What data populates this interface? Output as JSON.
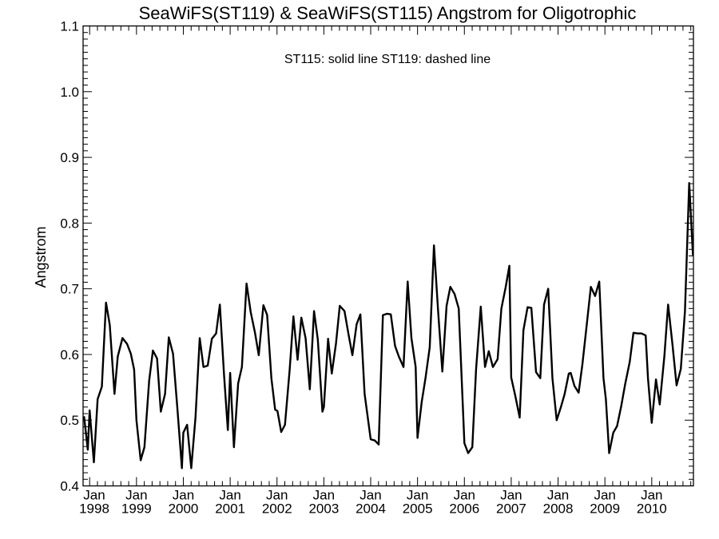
{
  "chart_data": {
    "type": "line",
    "title": "SeaWiFS(ST119) & SeaWiFS(ST115)  Angstrom for Oligotrophic",
    "annotation": "ST115: solid line   ST119: dashed line",
    "xlabel": "",
    "ylabel": "Angstrom",
    "xlim": [
      1997.86,
      2010.89
    ],
    "ylim": [
      0.4,
      1.1
    ],
    "yticks": [
      0.4,
      0.5,
      0.6,
      0.7,
      0.8,
      0.9,
      1.0,
      1.1
    ],
    "ytick_labels": [
      "0.4",
      "0.5",
      "0.6",
      "0.7",
      "0.8",
      "0.9",
      "1.0",
      "1.1"
    ],
    "xticks": [
      1998,
      1999,
      2000,
      2001,
      2002,
      2003,
      2004,
      2005,
      2006,
      2007,
      2008,
      2009,
      2010
    ],
    "xtick_month": "Jan",
    "xtick_labels": [
      "1998",
      "1999",
      "2000",
      "2001",
      "2002",
      "2003",
      "2004",
      "2005",
      "2006",
      "2007",
      "2008",
      "2009",
      "2010"
    ],
    "grid": false,
    "series": [
      {
        "name": "ST115",
        "style": "solid",
        "color": "#000000",
        "x": [
          1997.88,
          1997.96,
          1998.0,
          1998.09,
          1998.17,
          1998.26,
          1998.35,
          1998.43,
          1998.53,
          1998.6,
          1998.7,
          1998.8,
          1998.88,
          1998.95,
          1999.0,
          1999.09,
          1999.17,
          1999.27,
          1999.35,
          1999.44,
          1999.52,
          1999.61,
          1999.69,
          1999.78,
          1999.87,
          1999.97,
          2000.0,
          2000.08,
          2000.17,
          2000.26,
          2000.35,
          2000.43,
          2000.52,
          2000.61,
          2000.7,
          2000.78,
          2000.87,
          2000.95,
          2001.0,
          2001.08,
          2001.17,
          2001.25,
          2001.35,
          2001.44,
          2001.53,
          2001.61,
          2001.71,
          2001.79,
          2001.88,
          2001.96,
          2002.01,
          2002.09,
          2002.17,
          2002.27,
          2002.35,
          2002.44,
          2002.52,
          2002.61,
          2002.7,
          2002.79,
          2002.87,
          2002.97,
          2003.0,
          2003.09,
          2003.17,
          2003.26,
          2003.34,
          2003.44,
          2003.53,
          2003.61,
          2003.7,
          2003.78,
          2003.87,
          2004.0,
          2004.09,
          2004.17,
          2004.26,
          2004.35,
          2004.43,
          2004.52,
          2004.6,
          2004.7,
          2004.79,
          2004.87,
          2004.96,
          2005.0,
          2005.09,
          2005.17,
          2005.26,
          2005.35,
          2005.44,
          2005.53,
          2005.62,
          2005.7,
          2005.79,
          2005.88,
          2006.0,
          2006.08,
          2006.17,
          2006.25,
          2006.35,
          2006.44,
          2006.52,
          2006.61,
          2006.71,
          2006.79,
          2006.88,
          2006.96,
          2007.0,
          2007.09,
          2007.18,
          2007.26,
          2007.35,
          2007.43,
          2007.53,
          2007.62,
          2007.7,
          2007.79,
          2007.88,
          2007.97,
          2008.06,
          2008.14,
          2008.23,
          2008.27,
          2008.35,
          2008.44,
          2008.52,
          2008.6,
          2008.7,
          2008.79,
          2008.88,
          2008.97,
          2009.02,
          2009.09,
          2009.18,
          2009.26,
          2009.35,
          2009.43,
          2009.53,
          2009.61,
          2009.7,
          2009.78,
          2009.87,
          2009.92,
          2010.0,
          2010.09,
          2010.17,
          2010.27,
          2010.35,
          2010.44,
          2010.53,
          2010.62,
          2010.71,
          2010.8,
          2010.88
        ],
        "y": [
          0.506,
          0.455,
          0.515,
          0.436,
          0.532,
          0.551,
          0.679,
          0.645,
          0.54,
          0.597,
          0.625,
          0.616,
          0.601,
          0.577,
          0.5,
          0.439,
          0.459,
          0.56,
          0.606,
          0.594,
          0.513,
          0.54,
          0.626,
          0.601,
          0.52,
          0.427,
          0.481,
          0.493,
          0.427,
          0.504,
          0.625,
          0.581,
          0.583,
          0.624,
          0.632,
          0.676,
          0.568,
          0.485,
          0.572,
          0.459,
          0.556,
          0.581,
          0.708,
          0.664,
          0.633,
          0.599,
          0.675,
          0.66,
          0.564,
          0.516,
          0.514,
          0.482,
          0.493,
          0.577,
          0.658,
          0.592,
          0.656,
          0.625,
          0.547,
          0.666,
          0.623,
          0.513,
          0.52,
          0.624,
          0.571,
          0.617,
          0.674,
          0.666,
          0.629,
          0.599,
          0.646,
          0.661,
          0.54,
          0.471,
          0.469,
          0.463,
          0.66,
          0.662,
          0.661,
          0.613,
          0.597,
          0.581,
          0.711,
          0.625,
          0.581,
          0.473,
          0.528,
          0.564,
          0.611,
          0.766,
          0.666,
          0.574,
          0.674,
          0.703,
          0.692,
          0.67,
          0.465,
          0.45,
          0.459,
          0.577,
          0.673,
          0.581,
          0.605,
          0.581,
          0.593,
          0.67,
          0.702,
          0.735,
          0.565,
          0.536,
          0.504,
          0.637,
          0.672,
          0.671,
          0.573,
          0.564,
          0.676,
          0.7,
          0.564,
          0.5,
          0.52,
          0.54,
          0.571,
          0.572,
          0.552,
          0.542,
          0.585,
          0.637,
          0.703,
          0.689,
          0.711,
          0.564,
          0.532,
          0.45,
          0.481,
          0.491,
          0.522,
          0.554,
          0.589,
          0.633,
          0.632,
          0.632,
          0.629,
          0.564,
          0.496,
          0.562,
          0.524,
          0.597,
          0.676,
          0.617,
          0.553,
          0.578,
          0.666,
          0.861,
          0.751
        ]
      }
    ]
  }
}
